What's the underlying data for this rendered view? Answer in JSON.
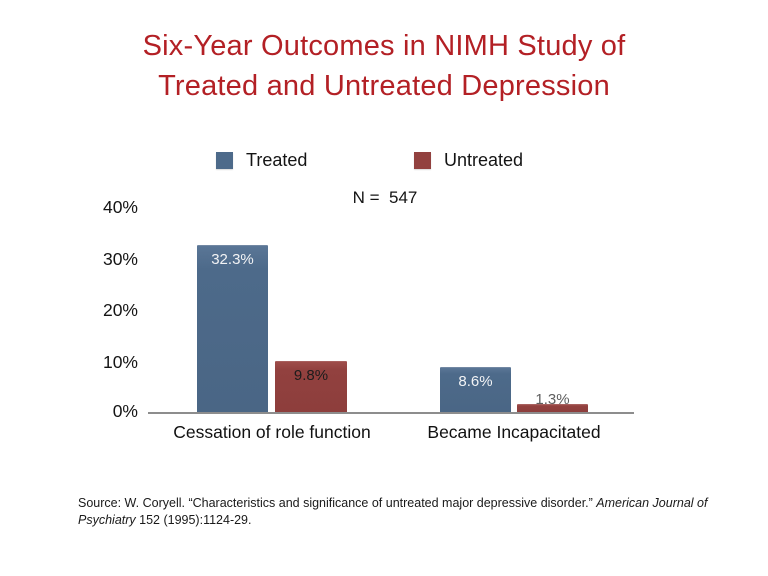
{
  "slide": {
    "title_line1": "Six-Year Outcomes in NIMH Study of",
    "title_line2": "Treated and Untreated Depression",
    "title_color": "#b32025",
    "n_label": "N =  547"
  },
  "legend": {
    "treated_label": "Treated",
    "untreated_label": "Untreated",
    "treated_color": "#4d6a8a",
    "untreated_color": "#92413f"
  },
  "axis": {
    "yticks": [
      "40%",
      "30%",
      "20%",
      "10%",
      "0%"
    ],
    "baseline_color": "#8d8d8d"
  },
  "source": {
    "line1_regular": "Source: W. Coryell. “Characteristics and significance of untreated major depressive disorder.” ",
    "line1_italic": "American Journal of",
    "line2_italic": "Psychiatry",
    "line2_regular": " 152 (1995):1124-29."
  },
  "chart_data": {
    "type": "bar",
    "title": "Six-Year Outcomes in NIMH Study of Treated and Untreated Depression",
    "categories": [
      "Cessation of role function",
      "Became Incapacitated"
    ],
    "series": [
      {
        "name": "Treated",
        "color": "#4d6a8a",
        "values": [
          32.3,
          8.6
        ],
        "display_labels": [
          "32.3%",
          "8.6%"
        ]
      },
      {
        "name": "Untreated",
        "color": "#92413f",
        "values": [
          9.8,
          1.3
        ],
        "display_labels": [
          "9.8%",
          "1.3%"
        ]
      }
    ],
    "annotation": "N =  547",
    "xlabel": "",
    "ylabel": "",
    "ylim": [
      0,
      40
    ],
    "ytick_labels": [
      "0%",
      "10%",
      "20%",
      "30%",
      "40%"
    ],
    "legend_position": "top",
    "grid": false,
    "value_labels_shown": true
  }
}
